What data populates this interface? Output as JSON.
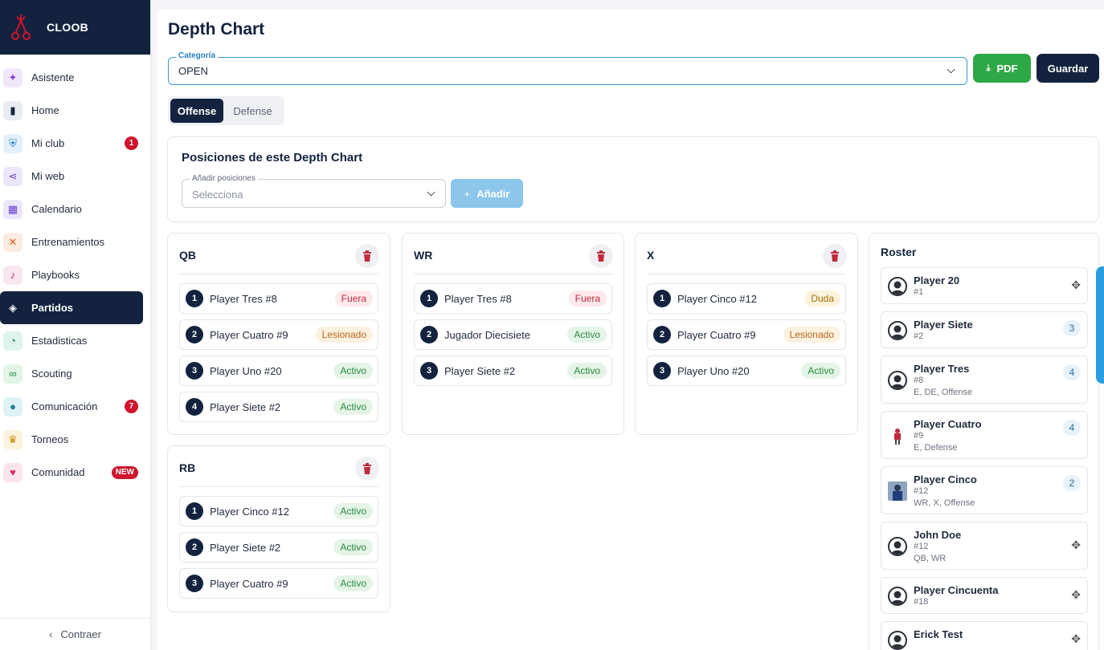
{
  "brand": {
    "name": "CLOOB"
  },
  "sidebar": {
    "items": [
      {
        "label": "Asistente",
        "icon": "sparkle-icon",
        "color": "#8b3fd1",
        "bg": "#f1e7fb"
      },
      {
        "label": "Home",
        "icon": "bookmark-icon",
        "color": "#13233f",
        "bg": "#e8ebf1"
      },
      {
        "label": "Mi club",
        "icon": "shield-icon",
        "color": "#1d7fc4",
        "bg": "#e2f0fa",
        "badge": "1"
      },
      {
        "label": "Mi web",
        "icon": "share-icon",
        "color": "#6a3fd1",
        "bg": "#ece6fb"
      },
      {
        "label": "Calendario",
        "icon": "calendar-icon",
        "color": "#6a3fd1",
        "bg": "#ece6fb"
      },
      {
        "label": "Entrenamientos",
        "icon": "playbook-x-icon",
        "color": "#e0621e",
        "bg": "#fcebe0"
      },
      {
        "label": "Playbooks",
        "icon": "strategy-icon",
        "color": "#b62a77",
        "bg": "#f8e6f0"
      },
      {
        "label": "Partidos",
        "icon": "football-icon",
        "color": "#ffffff",
        "bg": "transparent",
        "active": true
      },
      {
        "label": "Estadisticas",
        "icon": "pie-chart-icon",
        "color": "#12876a",
        "bg": "#def4ec"
      },
      {
        "label": "Scouting",
        "icon": "binoculars-icon",
        "color": "#1e8f3a",
        "bg": "#e2f5e6"
      },
      {
        "label": "Comunicación",
        "icon": "chat-icon",
        "color": "#1d7f93",
        "bg": "#dff2f5",
        "badge": "7"
      },
      {
        "label": "Torneos",
        "icon": "trophy-icon",
        "color": "#c58a09",
        "bg": "#fcf3dc"
      },
      {
        "label": "Comunidad",
        "icon": "heart-icon",
        "color": "#d0306b",
        "bg": "#fbe4ec",
        "badge_new": "NEW"
      }
    ],
    "collapse_label": "Contraer"
  },
  "page": {
    "title": "Depth Chart",
    "category_label": "Categoría",
    "category_value": "OPEN",
    "pdf_label": "PDF",
    "save_label": "Guardar",
    "tabs": [
      "Offense",
      "Defense"
    ]
  },
  "positions_card": {
    "title": "Posiciones de este Depth Chart",
    "add_label": "Añadir posiciones",
    "add_placeholder": "Selecciona",
    "add_button": "Añadir"
  },
  "columns": [
    {
      "name": "QB",
      "players": [
        {
          "rank": "1",
          "name": "Player Tres #8",
          "status": "Fuera",
          "kind": "fuera"
        },
        {
          "rank": "2",
          "name": "Player Cuatro #9",
          "status": "Lesionado",
          "kind": "lesionado"
        },
        {
          "rank": "3",
          "name": "Player Uno #20",
          "status": "Activo",
          "kind": "activo"
        },
        {
          "rank": "4",
          "name": "Player Siete #2",
          "status": "Activo",
          "kind": "activo"
        }
      ]
    },
    {
      "name": "WR",
      "players": [
        {
          "rank": "1",
          "name": "Player Tres #8",
          "status": "Fuera",
          "kind": "fuera"
        },
        {
          "rank": "2",
          "name": "Jugador Diecisiete",
          "status": "Activo",
          "kind": "activo"
        },
        {
          "rank": "3",
          "name": "Player Siete #2",
          "status": "Activo",
          "kind": "activo"
        }
      ]
    },
    {
      "name": "X",
      "players": [
        {
          "rank": "1",
          "name": "Player Cinco #12",
          "status": "Duda",
          "kind": "duda"
        },
        {
          "rank": "2",
          "name": "Player Cuatro #9",
          "status": "Lesionado",
          "kind": "lesionado"
        },
        {
          "rank": "3",
          "name": "Player Uno #20",
          "status": "Activo",
          "kind": "activo"
        }
      ]
    },
    {
      "name": "RB",
      "players": [
        {
          "rank": "1",
          "name": "Player Cinco #12",
          "status": "Activo",
          "kind": "activo"
        },
        {
          "rank": "2",
          "name": "Player Siete #2",
          "status": "Activo",
          "kind": "activo"
        },
        {
          "rank": "3",
          "name": "Player Cuatro #9",
          "status": "Activo",
          "kind": "activo"
        }
      ]
    }
  ],
  "roster": {
    "title": "Roster",
    "players": [
      {
        "name": "Player 20",
        "number": "#1",
        "positions": "",
        "count": "",
        "avatar": "default"
      },
      {
        "name": "Player Siete",
        "number": "#2",
        "positions": "",
        "count": "3",
        "avatar": "default"
      },
      {
        "name": "Player Tres",
        "number": "#8",
        "positions": "E, DE, Offense",
        "count": "4",
        "avatar": "default"
      },
      {
        "name": "Player Cuatro",
        "number": "#9",
        "positions": "E, Defense",
        "count": "4",
        "avatar": "photo-red"
      },
      {
        "name": "Player Cinco",
        "number": "#12",
        "positions": "WR, X, Offense",
        "count": "2",
        "avatar": "photo-blue"
      },
      {
        "name": "John Doe",
        "number": "#12",
        "positions": "QB, WR",
        "count": "",
        "avatar": "default"
      },
      {
        "name": "Player Cincuenta",
        "number": "#18",
        "positions": "",
        "count": "",
        "avatar": "default"
      },
      {
        "name": "Erick Test",
        "number": "",
        "positions": "",
        "count": "",
        "avatar": "default"
      }
    ]
  }
}
